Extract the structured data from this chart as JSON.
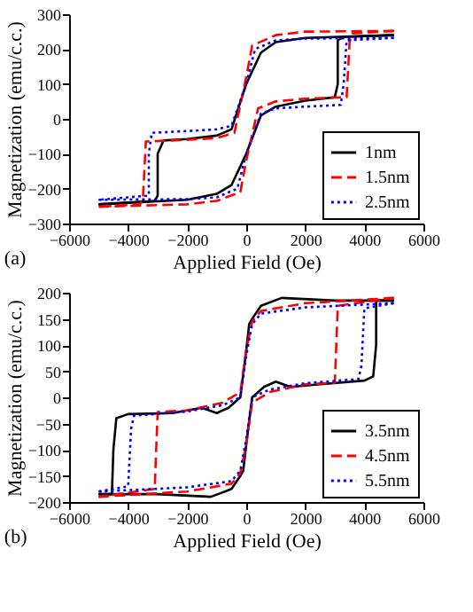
{
  "chart_data": [
    {
      "type": "line",
      "xlabel": "Applied Field (Oe)",
      "ylabel": "Magnetization (emu/c.c.)",
      "annotations": [
        "(a)"
      ],
      "xlim": [
        -6000,
        6000
      ],
      "xticks": [
        -6000,
        -4000,
        -2000,
        0,
        2000,
        4000,
        6000
      ],
      "ylim": [
        -300,
        300
      ],
      "yticks": [
        -300,
        -200,
        -100,
        0,
        100,
        200,
        300
      ],
      "grid": false,
      "legend": "bottom right",
      "marker": "none",
      "series": [
        {
          "name": "1nm",
          "color": "#000000",
          "line_style": "solid",
          "x": [
            5000,
            2000,
            1000,
            500,
            0,
            -500,
            -1000,
            -2000,
            -2800,
            -3000,
            -3000,
            -3100,
            -5000
          ],
          "values": [
            240,
            232,
            220,
            190,
            100,
            -30,
            -48,
            -58,
            -62,
            -100,
            -220,
            -235,
            -245
          ]
        },
        {
          "color": "#000000",
          "line_style": "solid",
          "x": [
            -5000,
            -2000,
            -1000,
            -500,
            0,
            500,
            1000,
            2000,
            3000,
            3100,
            3100,
            3300,
            5000
          ],
          "values": [
            -245,
            -232,
            -215,
            -190,
            -100,
            10,
            35,
            52,
            62,
            100,
            225,
            235,
            240
          ]
        },
        {
          "name": "1.5nm",
          "color": "#ff0000",
          "line_style": "dashed",
          "x": [
            5000,
            2000,
            1000,
            200,
            0,
            -400,
            -1000,
            -2000,
            -3400,
            -3500,
            -3600,
            -5000
          ],
          "values": [
            252,
            250,
            240,
            210,
            120,
            -40,
            -55,
            -60,
            -65,
            -230,
            -245,
            -252
          ]
        },
        {
          "color": "#ff0000",
          "line_style": "dashed",
          "x": [
            -5000,
            -2000,
            -1000,
            -200,
            0,
            400,
            1000,
            2000,
            3400,
            3500,
            3600,
            5000
          ],
          "values": [
            -252,
            -245,
            -235,
            -210,
            -120,
            30,
            50,
            58,
            62,
            220,
            245,
            252
          ]
        },
        {
          "name": "2.5nm",
          "color": "#0000ff",
          "line_style": "dotted",
          "x": [
            5000,
            2000,
            1000,
            300,
            0,
            -500,
            -1000,
            -2000,
            -3200,
            -3300,
            -3300,
            -5000
          ],
          "values": [
            232,
            230,
            225,
            200,
            100,
            -20,
            -30,
            -35,
            -40,
            -100,
            -220,
            -232
          ]
        },
        {
          "color": "#0000ff",
          "line_style": "dotted",
          "x": [
            -5000,
            -2000,
            -1000,
            -300,
            0,
            500,
            1000,
            2000,
            3200,
            3300,
            3400,
            5000
          ],
          "values": [
            -232,
            -230,
            -225,
            -200,
            -100,
            15,
            30,
            35,
            40,
            100,
            225,
            232
          ]
        }
      ]
    },
    {
      "type": "line",
      "xlabel": "Applied Field (Oe)",
      "ylabel": "Magnetization (emu/c.c.)",
      "annotations": [
        "(b)"
      ],
      "xlim": [
        -6000,
        6000
      ],
      "xticks": [
        -6000,
        -4000,
        -2000,
        0,
        2000,
        4000,
        6000
      ],
      "ylim": [
        -200,
        200
      ],
      "yticks": [
        -200,
        -150,
        -100,
        -50,
        0,
        50,
        100,
        150,
        200
      ],
      "grid": false,
      "legend": "bottom right",
      "marker": "none",
      "series": [
        {
          "name": "3.5nm",
          "color": "#000000",
          "line_style": "solid",
          "x": [
            5000,
            3000,
            1200,
            500,
            200,
            100,
            0,
            -200,
            -600,
            -1000,
            -1500,
            -2500,
            -4000,
            -4400,
            -4500,
            -4550,
            -5000
          ],
          "values": [
            185,
            185,
            190,
            175,
            150,
            140,
            90,
            0,
            -20,
            -30,
            -20,
            -30,
            -32,
            -40,
            -100,
            -185,
            -185
          ]
        },
        {
          "color": "#000000",
          "line_style": "solid",
          "x": [
            -5000,
            -3000,
            -1200,
            -500,
            -200,
            -100,
            0,
            200,
            600,
            1000,
            1500,
            2500,
            4000,
            4300,
            4400,
            4400,
            5000
          ],
          "values": [
            -185,
            -185,
            -190,
            -175,
            -150,
            -140,
            -90,
            0,
            20,
            30,
            20,
            25,
            32,
            40,
            100,
            185,
            185
          ]
        },
        {
          "name": "4.5nm",
          "color": "#ff0000",
          "line_style": "dashed",
          "x": [
            5000,
            2000,
            500,
            200,
            0,
            -200,
            -800,
            -2000,
            -3000,
            -3050,
            -3100,
            -5000
          ],
          "values": [
            190,
            180,
            165,
            145,
            90,
            10,
            -10,
            -25,
            -28,
            -100,
            -175,
            -190
          ]
        },
        {
          "color": "#ff0000",
          "line_style": "dashed",
          "x": [
            -5000,
            -2000,
            -500,
            -200,
            0,
            200,
            800,
            2000,
            3000,
            3050,
            3100,
            5000
          ],
          "values": [
            -190,
            -180,
            -165,
            -145,
            -90,
            -10,
            10,
            25,
            28,
            100,
            175,
            190
          ]
        },
        {
          "name": "5.5nm",
          "color": "#0000ff",
          "line_style": "dotted",
          "x": [
            5000,
            2000,
            500,
            200,
            0,
            -200,
            -800,
            -2000,
            -3800,
            -3900,
            -4000,
            -5000
          ],
          "values": [
            180,
            172,
            160,
            140,
            80,
            0,
            -15,
            -27,
            -35,
            -60,
            -170,
            -180
          ]
        },
        {
          "color": "#0000ff",
          "line_style": "dotted",
          "x": [
            -5000,
            -2000,
            -500,
            -200,
            0,
            200,
            800,
            2000,
            3800,
            3900,
            4000,
            5000
          ],
          "values": [
            -180,
            -172,
            -160,
            -140,
            -80,
            0,
            15,
            27,
            35,
            60,
            170,
            180
          ]
        }
      ]
    }
  ]
}
